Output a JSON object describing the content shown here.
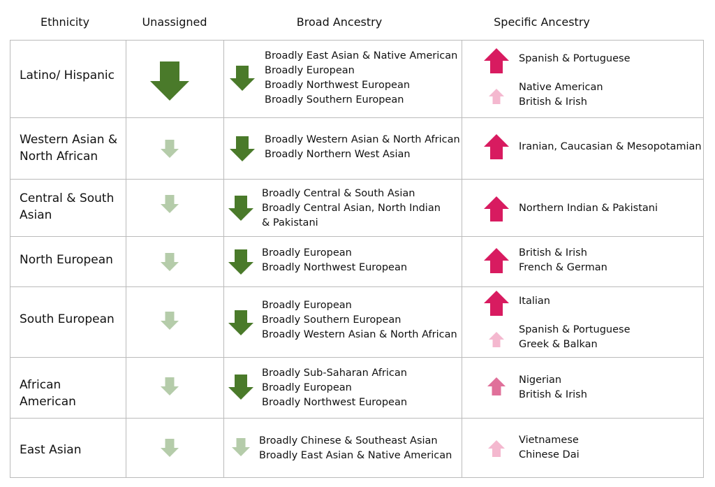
{
  "header": [
    "Ethnicity",
    "Unassigned",
    "Broad Ancestry",
    "Specific Ancestry"
  ],
  "rows": [
    {
      "ethnicity": "Latino/ Hispanic",
      "broad": [
        "Broadly East Asian & Native American",
        "Broadly European",
        "Broadly Northwest European",
        "Broadly Southern European"
      ],
      "specific": [
        [
          "Spanish & Portuguese"
        ],
        [
          "Native American",
          "British & Irish"
        ]
      ]
    },
    {
      "ethnicity": "Western Asian & North African",
      "broad": [
        "Broadly Western Asian & North African",
        "Broadly Northern West Asian"
      ],
      "specific": [
        [
          "Iranian, Caucasian & Mesopotamian"
        ]
      ]
    },
    {
      "ethnicity": "Central & South Asian",
      "broad": [
        "Broadly Central & South Asian",
        "Broadly Central Asian, North Indian & Pakistani"
      ],
      "specific": [
        [
          "Northern Indian & Pakistani"
        ]
      ]
    },
    {
      "ethnicity": "North European",
      "broad": [
        "Broadly European",
        "Broadly Northwest European"
      ],
      "specific": [
        [
          "British & Irish",
          "French & German"
        ]
      ]
    },
    {
      "ethnicity": "South European",
      "broad": [
        "Broadly European",
        "Broadly Southern European",
        "Broadly Western Asian & North African"
      ],
      "specific": [
        [
          "Italian"
        ],
        [
          "Spanish & Portuguese",
          "Greek & Balkan"
        ]
      ]
    },
    {
      "ethnicity": "African American",
      "broad": [
        "Broadly Sub-Saharan African",
        "Broadly European",
        "Broadly Northwest European"
      ],
      "specific": [
        [
          "Nigerian",
          "British & Irish"
        ]
      ]
    },
    {
      "ethnicity": "East Asian",
      "broad": [
        "Broadly Chinese & Southeast Asian",
        "Broadly East Asian & Native American"
      ],
      "specific": [
        [
          "Vietnamese",
          "Chinese Dai"
        ]
      ]
    }
  ]
}
